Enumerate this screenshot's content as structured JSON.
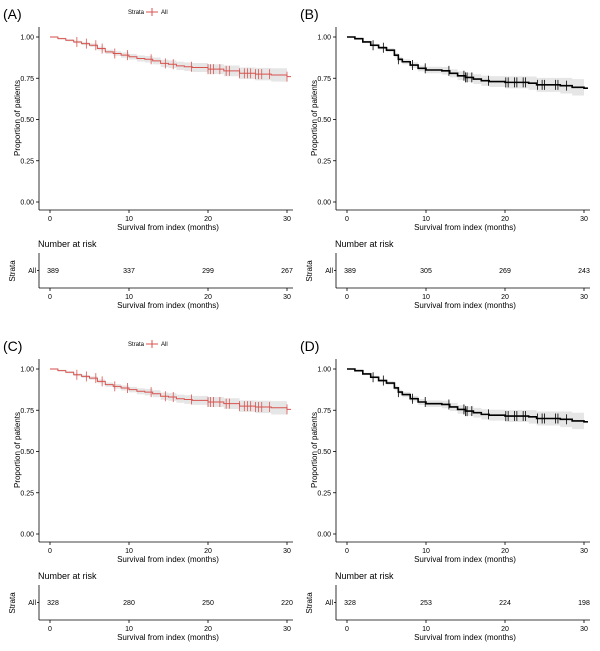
{
  "colors": {
    "red": "#d9534f",
    "black": "#000000",
    "band": "#e6e6e6"
  },
  "chart_data": [
    {
      "panel": "(A)",
      "type": "line",
      "color_key": "red",
      "legend": {
        "title": "Strata",
        "label": "All",
        "placement": "top"
      },
      "xlabel": "Survival from index (months)",
      "ylabel": "Proportion of patients",
      "xlim": [
        0,
        30
      ],
      "ylim": [
        0,
        1
      ],
      "xticks": [
        "0",
        "10",
        "20",
        "30"
      ],
      "yticks": [
        "0.00",
        "0.25",
        "0.50",
        "0.75",
        "1.00"
      ],
      "curve": [
        [
          0,
          1.0
        ],
        [
          1,
          0.99
        ],
        [
          2,
          0.98
        ],
        [
          3,
          0.97
        ],
        [
          4,
          0.96
        ],
        [
          5,
          0.95
        ],
        [
          6,
          0.93
        ],
        [
          7,
          0.91
        ],
        [
          8,
          0.9
        ],
        [
          9,
          0.89
        ],
        [
          10,
          0.88
        ],
        [
          11,
          0.87
        ],
        [
          12,
          0.865
        ],
        [
          13,
          0.855
        ],
        [
          14,
          0.84
        ],
        [
          15,
          0.835
        ],
        [
          16,
          0.825
        ],
        [
          17,
          0.82
        ],
        [
          18,
          0.815
        ],
        [
          20,
          0.805
        ],
        [
          22,
          0.795
        ],
        [
          24,
          0.78
        ],
        [
          26,
          0.775
        ],
        [
          28,
          0.77
        ],
        [
          30,
          0.76
        ]
      ],
      "censors": [
        3.4,
        4.6,
        5.8,
        6.6,
        8.2,
        9.8,
        12.8,
        14.6,
        15.6,
        17.9,
        20,
        20.3,
        20.7,
        21.5,
        22.3,
        22.7,
        24,
        24.6,
        25,
        25.4,
        26,
        26.4,
        26.8,
        27.8,
        30
      ],
      "risk_table": {
        "title": "Number at risk",
        "ylabel": "Strata",
        "row_label": "All",
        "times": [
          0,
          10,
          20,
          30
        ],
        "values": [
          "389",
          "337",
          "299",
          "267"
        ]
      }
    },
    {
      "panel": "(B)",
      "type": "line",
      "color_key": "black",
      "xlabel": "Survival from index (months)",
      "ylabel": "Proportion of patients",
      "xlim": [
        0,
        30
      ],
      "ylim": [
        0,
        1
      ],
      "xticks": [
        "0",
        "10",
        "20",
        "30"
      ],
      "yticks": [
        "0.00",
        "0.25",
        "0.50",
        "0.75",
        "1.00"
      ],
      "curve": [
        [
          0,
          1.0
        ],
        [
          1,
          0.99
        ],
        [
          2,
          0.97
        ],
        [
          3,
          0.95
        ],
        [
          4,
          0.935
        ],
        [
          5,
          0.92
        ],
        [
          6,
          0.89
        ],
        [
          6.5,
          0.865
        ],
        [
          7,
          0.85
        ],
        [
          8,
          0.83
        ],
        [
          9,
          0.81
        ],
        [
          10,
          0.8
        ],
        [
          12,
          0.795
        ],
        [
          13,
          0.78
        ],
        [
          14,
          0.765
        ],
        [
          15,
          0.755
        ],
        [
          16,
          0.745
        ],
        [
          17,
          0.735
        ],
        [
          18,
          0.73
        ],
        [
          20,
          0.725
        ],
        [
          23,
          0.72
        ],
        [
          24,
          0.71
        ],
        [
          27,
          0.705
        ],
        [
          28.5,
          0.695
        ],
        [
          30,
          0.69
        ]
      ],
      "censors": [
        3.3,
        4.6,
        6.5,
        8.3,
        9.9,
        12.9,
        14.8,
        15,
        15.2,
        15.8,
        17.9,
        20.1,
        20.4,
        21.2,
        21.5,
        22.3,
        22.6,
        24.1,
        24.7,
        25,
        26.4,
        26.7,
        27.8
      ],
      "risk_table": {
        "title": "Number at risk",
        "ylabel": "Strata",
        "row_label": "All",
        "times": [
          0,
          10,
          20,
          30
        ],
        "values": [
          "389",
          "305",
          "269",
          "243"
        ]
      }
    },
    {
      "panel": "(C)",
      "type": "line",
      "color_key": "red",
      "legend": {
        "title": "Strata",
        "label": "All",
        "placement": "top"
      },
      "xlabel": "Survival from index (months)",
      "ylabel": "Proportion of patients",
      "xlim": [
        0,
        30
      ],
      "ylim": [
        0,
        1
      ],
      "xticks": [
        "0",
        "10",
        "20",
        "30"
      ],
      "yticks": [
        "0.00",
        "0.25",
        "0.50",
        "0.75",
        "1.00"
      ],
      "curve": [
        [
          0,
          1.0
        ],
        [
          1,
          0.99
        ],
        [
          2,
          0.98
        ],
        [
          3,
          0.965
        ],
        [
          4,
          0.955
        ],
        [
          5,
          0.945
        ],
        [
          6,
          0.925
        ],
        [
          7,
          0.905
        ],
        [
          8,
          0.895
        ],
        [
          9,
          0.885
        ],
        [
          10,
          0.875
        ],
        [
          11,
          0.865
        ],
        [
          12,
          0.86
        ],
        [
          13,
          0.85
        ],
        [
          14,
          0.835
        ],
        [
          15,
          0.83
        ],
        [
          16,
          0.82
        ],
        [
          17,
          0.815
        ],
        [
          18,
          0.81
        ],
        [
          20,
          0.8
        ],
        [
          22,
          0.79
        ],
        [
          24,
          0.775
        ],
        [
          26,
          0.77
        ],
        [
          28,
          0.765
        ],
        [
          30,
          0.755
        ]
      ],
      "censors": [
        3.4,
        4.6,
        5.8,
        6.6,
        8.2,
        9.8,
        12.8,
        14.6,
        15.6,
        17.9,
        20,
        20.3,
        20.7,
        21.5,
        22.3,
        22.7,
        24,
        24.6,
        25,
        25.4,
        26,
        26.4,
        26.8,
        27.8,
        30
      ],
      "risk_table": {
        "title": "Number at risk",
        "ylabel": "Strata",
        "row_label": "All",
        "times": [
          0,
          10,
          20,
          30
        ],
        "values": [
          "328",
          "280",
          "250",
          "220"
        ]
      }
    },
    {
      "panel": "(D)",
      "type": "line",
      "color_key": "black",
      "xlabel": "Survival from index (months)",
      "ylabel": "Proportion of patients",
      "xlim": [
        0,
        30
      ],
      "ylim": [
        0,
        1
      ],
      "xticks": [
        "0",
        "10",
        "20",
        "30"
      ],
      "yticks": [
        "0.00",
        "0.25",
        "0.50",
        "0.75",
        "1.00"
      ],
      "curve": [
        [
          0,
          1.0
        ],
        [
          1,
          0.99
        ],
        [
          2,
          0.97
        ],
        [
          3,
          0.95
        ],
        [
          4,
          0.93
        ],
        [
          5,
          0.915
        ],
        [
          6,
          0.885
        ],
        [
          6.5,
          0.86
        ],
        [
          7,
          0.845
        ],
        [
          8,
          0.82
        ],
        [
          9,
          0.8
        ],
        [
          10,
          0.79
        ],
        [
          12,
          0.785
        ],
        [
          13,
          0.77
        ],
        [
          14,
          0.755
        ],
        [
          15,
          0.745
        ],
        [
          16,
          0.735
        ],
        [
          17,
          0.725
        ],
        [
          18,
          0.72
        ],
        [
          20,
          0.715
        ],
        [
          23,
          0.71
        ],
        [
          24,
          0.7
        ],
        [
          27,
          0.695
        ],
        [
          28.5,
          0.685
        ],
        [
          30,
          0.68
        ]
      ],
      "censors": [
        3.3,
        4.6,
        6.5,
        8.3,
        9.9,
        12.9,
        14.8,
        15,
        15.2,
        15.8,
        17.9,
        20.1,
        20.4,
        21.2,
        21.5,
        22.3,
        22.6,
        24.1,
        24.7,
        25,
        26.4,
        26.7,
        27.8
      ],
      "risk_table": {
        "title": "Number at risk",
        "ylabel": "Strata",
        "row_label": "All",
        "times": [
          0,
          10,
          20,
          30
        ],
        "values": [
          "328",
          "253",
          "224",
          "198"
        ]
      }
    }
  ]
}
